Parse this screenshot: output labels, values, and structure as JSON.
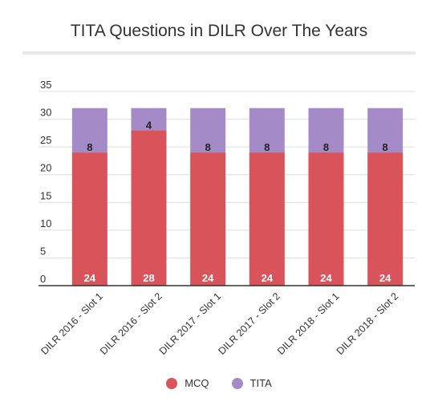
{
  "chart_data": {
    "type": "bar",
    "stacked": true,
    "title": "TITA Questions in DILR Over The Years",
    "categories": [
      "DILR 2016 - Slot 1",
      "DILR 2016 - Slot 2",
      "DILR 2017 - Slot 1",
      "DILR 2017 - Slot 2",
      "DILR 2018 - Slot 1",
      "DILR 2018 - Slot 2"
    ],
    "series": [
      {
        "name": "MCQ",
        "values": [
          24,
          28,
          24,
          24,
          24,
          24
        ],
        "color": "#d9535a"
      },
      {
        "name": "TITA",
        "values": [
          8,
          4,
          8,
          8,
          8,
          8
        ],
        "color": "#a58ac8"
      }
    ],
    "yticks": [
      0,
      5,
      10,
      15,
      20,
      25,
      30,
      35
    ],
    "ylim": [
      0,
      35
    ],
    "xlabel": "",
    "ylabel": "",
    "grid": true,
    "legend_position": "bottom"
  }
}
